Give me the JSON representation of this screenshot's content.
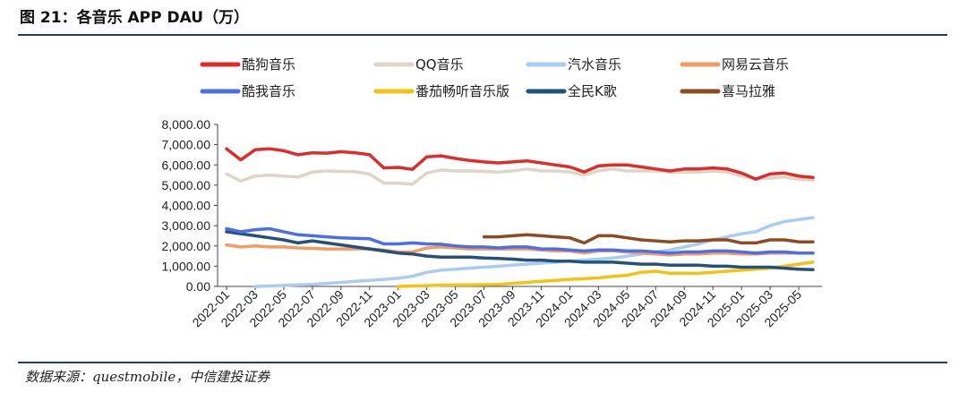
{
  "header": {
    "title": "图 21：各音乐 APP DAU（万）"
  },
  "footer": {
    "source": "数据来源：questmobile，中信建投证券"
  },
  "colors": {
    "酷狗音乐": "#e02b2b",
    "QQ音乐": "#ddd6c6",
    "汽水音乐": "#a9cdf2",
    "网易云音乐": "#f39a63",
    "酷我音乐": "#4c6fe8",
    "番茄畅听音乐版": "#f5c214",
    "全民K歌": "#22527c",
    "喜马拉雅": "#8f4a22",
    "rule": "#1f3f66"
  },
  "chart_data": {
    "type": "line",
    "ylim": [
      0,
      8000
    ],
    "yticks": [
      "0.00",
      "1,000.00",
      "2,000.00",
      "3,000.00",
      "4,000.00",
      "5,000.00",
      "6,000.00",
      "7,000.00",
      "8,000.00"
    ],
    "x": [
      "2022-01",
      "2022-02",
      "2022-03",
      "2022-04",
      "2022-05",
      "2022-06",
      "2022-07",
      "2022-08",
      "2022-09",
      "2022-10",
      "2022-11",
      "2022-12",
      "2023-01",
      "2023-02",
      "2023-03",
      "2023-04",
      "2023-05",
      "2023-06",
      "2023-07",
      "2023-08",
      "2023-09",
      "2023-10",
      "2023-11",
      "2023-12",
      "2024-01",
      "2024-02",
      "2024-03",
      "2024-04",
      "2024-05",
      "2024-06",
      "2024-07",
      "2024-08",
      "2024-09",
      "2024-10",
      "2024-11",
      "2024-12",
      "2025-01",
      "2025-02",
      "2025-03",
      "2025-04",
      "2025-05",
      "2025-06"
    ],
    "xticks_shown": [
      "2022-01",
      "2022-03",
      "2022-05",
      "2022-07",
      "2022-09",
      "2022-11",
      "2023-01",
      "2023-03",
      "2023-05",
      "2023-07",
      "2023-09",
      "2023-11",
      "2024-01",
      "2024-03",
      "2024-05",
      "2024-07",
      "2024-09",
      "2024-11",
      "2025-01",
      "2025-03",
      "2025-05"
    ],
    "legend_rows": [
      [
        "酷狗音乐",
        "QQ音乐",
        "汽水音乐",
        "网易云音乐"
      ],
      [
        "酷我音乐",
        "番茄畅听音乐版",
        "全民K歌",
        "喜马拉雅"
      ]
    ],
    "series": [
      {
        "name": "酷狗音乐",
        "values": [
          6800,
          6250,
          6750,
          6800,
          6700,
          6500,
          6600,
          6580,
          6650,
          6600,
          6500,
          5850,
          5880,
          5780,
          6400,
          6450,
          6320,
          6220,
          6150,
          6100,
          6150,
          6200,
          6100,
          6000,
          5900,
          5650,
          5950,
          6000,
          6000,
          5900,
          5800,
          5700,
          5800,
          5800,
          5850,
          5800,
          5600,
          5300,
          5550,
          5600,
          5450,
          5380
        ]
      },
      {
        "name": "QQ音乐",
        "values": [
          5550,
          5200,
          5450,
          5500,
          5450,
          5400,
          5650,
          5700,
          5680,
          5660,
          5550,
          5100,
          5100,
          5050,
          5600,
          5750,
          5700,
          5700,
          5680,
          5650,
          5700,
          5800,
          5700,
          5700,
          5650,
          5500,
          5700,
          5800,
          5700,
          5700,
          5700,
          5650,
          5650,
          5650,
          5700,
          5650,
          5450,
          5300,
          5350,
          5400,
          5300,
          5250
        ]
      },
      {
        "name": "汽水音乐",
        "values": [
          null,
          null,
          0,
          20,
          50,
          80,
          100,
          150,
          200,
          250,
          300,
          350,
          400,
          500,
          700,
          800,
          850,
          900,
          950,
          1000,
          1050,
          1100,
          1150,
          1200,
          1250,
          1300,
          1350,
          1400,
          1500,
          1600,
          1700,
          1800,
          1950,
          2100,
          2300,
          2450,
          2600,
          2700,
          3000,
          3200,
          3300,
          3400
        ]
      },
      {
        "name": "网易云音乐",
        "values": [
          2050,
          1950,
          2000,
          1950,
          1950,
          1900,
          1880,
          1850,
          1850,
          1850,
          1850,
          1800,
          1700,
          1700,
          1900,
          1950,
          1900,
          1850,
          1850,
          1850,
          1850,
          1850,
          1800,
          1750,
          1750,
          1650,
          1750,
          1750,
          1700,
          1650,
          1600,
          1550,
          1600,
          1600,
          1650,
          1650,
          1600,
          1600,
          1650,
          1650,
          1650,
          1650
        ]
      },
      {
        "name": "酷我音乐",
        "values": [
          2850,
          2700,
          2800,
          2850,
          2700,
          2550,
          2500,
          2450,
          2400,
          2380,
          2350,
          2100,
          2100,
          2150,
          2100,
          2080,
          2000,
          1950,
          1950,
          1900,
          1950,
          1950,
          1850,
          1850,
          1800,
          1750,
          1800,
          1800,
          1750,
          1750,
          1700,
          1650,
          1700,
          1700,
          1750,
          1750,
          1700,
          1650,
          1700,
          1700,
          1650,
          1650
        ]
      },
      {
        "name": "番茄畅听音乐版",
        "values": [
          null,
          null,
          null,
          null,
          null,
          null,
          null,
          null,
          null,
          null,
          null,
          null,
          0,
          20,
          40,
          60,
          70,
          80,
          90,
          100,
          150,
          200,
          250,
          300,
          350,
          380,
          420,
          500,
          550,
          700,
          750,
          650,
          650,
          650,
          700,
          750,
          800,
          850,
          900,
          1000,
          1100,
          1200
        ]
      },
      {
        "name": "全民K歌",
        "values": [
          2700,
          2600,
          2500,
          2400,
          2300,
          2150,
          2250,
          2150,
          2050,
          1950,
          1850,
          1750,
          1650,
          1600,
          1500,
          1450,
          1450,
          1450,
          1400,
          1380,
          1350,
          1300,
          1300,
          1250,
          1250,
          1200,
          1200,
          1200,
          1150,
          1100,
          1100,
          1050,
          1050,
          1050,
          1000,
          1000,
          950,
          950,
          950,
          900,
          850,
          830
        ]
      },
      {
        "name": "喜马拉雅",
        "values": [
          null,
          null,
          null,
          null,
          null,
          null,
          null,
          null,
          null,
          null,
          null,
          null,
          null,
          null,
          null,
          null,
          null,
          null,
          2450,
          2450,
          2500,
          2550,
          2500,
          2450,
          2400,
          2150,
          2500,
          2500,
          2400,
          2300,
          2250,
          2200,
          2250,
          2250,
          2300,
          2300,
          2150,
          2150,
          2300,
          2300,
          2200,
          2200
        ]
      }
    ]
  }
}
